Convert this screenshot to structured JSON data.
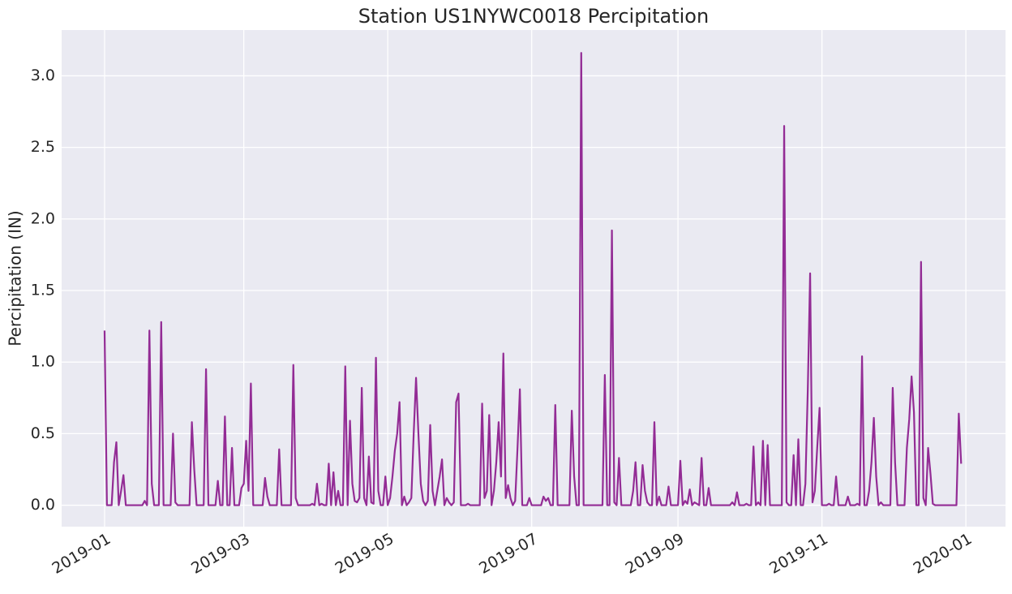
{
  "chart_data": {
    "type": "line",
    "title": "Station US1NYWC0018 Percipitation",
    "y_label": "Percipitation (IN)",
    "color": "#932c95",
    "grid": true,
    "xlim": [
      -18.2,
      381.8
    ],
    "ylim": [
      -0.15,
      3.32
    ],
    "xticks": [
      {
        "value": 0,
        "label": "2019-01"
      },
      {
        "value": 59,
        "label": "2019-03"
      },
      {
        "value": 120,
        "label": "2019-05"
      },
      {
        "value": 181,
        "label": "2019-07"
      },
      {
        "value": 243,
        "label": "2019-09"
      },
      {
        "value": 304,
        "label": "2019-11"
      },
      {
        "value": 365,
        "label": "2020-01"
      }
    ],
    "yticks": [
      {
        "value": 0,
        "label": "0.0"
      },
      0.5,
      {
        "value": 1,
        "label": "1.0"
      },
      1.5,
      {
        "value": 2,
        "label": "2.0"
      },
      2.5,
      {
        "value": 3,
        "label": "3.0"
      }
    ],
    "x": [
      0,
      1,
      3,
      4,
      5,
      6,
      7,
      8,
      9,
      16,
      17,
      18,
      19,
      20,
      21,
      23,
      24,
      25,
      28,
      29,
      30,
      31,
      36,
      37,
      38,
      39,
      42,
      43,
      44,
      47,
      48,
      49,
      50,
      51,
      52,
      53,
      54,
      55,
      57,
      58,
      59,
      60,
      61,
      62,
      63,
      67,
      68,
      69,
      70,
      73,
      74,
      75,
      79,
      80,
      81,
      82,
      87,
      88,
      89,
      90,
      91,
      92,
      93,
      94,
      95,
      96,
      97,
      98,
      99,
      100,
      101,
      102,
      103,
      104,
      105,
      106,
      107,
      108,
      109,
      110,
      111,
      112,
      113,
      114,
      115,
      116,
      117,
      118,
      119,
      120,
      121,
      122,
      123,
      124,
      125,
      126,
      127,
      128,
      129,
      130,
      131,
      132,
      133,
      134,
      135,
      136,
      137,
      138,
      139,
      140,
      141,
      142,
      143,
      144,
      145,
      146,
      147,
      148,
      149,
      150,
      151,
      153,
      154,
      155,
      159,
      160,
      161,
      162,
      163,
      164,
      165,
      166,
      167,
      168,
      169,
      170,
      171,
      172,
      173,
      174,
      175,
      176,
      177,
      179,
      180,
      181,
      185,
      186,
      187,
      188,
      189,
      190,
      191,
      192,
      197,
      198,
      199,
      200,
      201,
      202,
      203,
      211,
      212,
      213,
      214,
      215,
      216,
      217,
      218,
      219,
      223,
      224,
      225,
      226,
      227,
      228,
      229,
      230,
      231,
      232,
      233,
      234,
      235,
      236,
      238,
      239,
      240,
      243,
      244,
      245,
      246,
      247,
      248,
      249,
      250,
      251,
      252,
      253,
      254,
      255,
      256,
      257,
      265,
      266,
      267,
      268,
      269,
      271,
      272,
      273,
      274,
      275,
      276,
      277,
      278,
      279,
      280,
      281,
      282,
      287,
      288,
      289,
      290,
      291,
      292,
      293,
      294,
      295,
      296,
      297,
      298,
      299,
      300,
      301,
      302,
      303,
      304,
      306,
      307,
      308,
      309,
      310,
      311,
      314,
      315,
      316,
      318,
      319,
      320,
      321,
      322,
      323,
      324,
      325,
      326,
      327,
      328,
      329,
      330,
      333,
      334,
      335,
      336,
      339,
      340,
      341,
      342,
      343,
      344,
      345,
      346,
      347,
      348,
      349,
      350,
      351,
      352,
      361,
      362,
      363
    ],
    "values": [
      1.22,
      0,
      0,
      0.3,
      0.44,
      0,
      0.1,
      0.21,
      0,
      0,
      0.03,
      0,
      1.22,
      0.15,
      0,
      0,
      1.28,
      0,
      0,
      0.5,
      0.02,
      0,
      0,
      0.58,
      0.25,
      0,
      0,
      0.95,
      0,
      0,
      0.17,
      0,
      0,
      0.62,
      0,
      0,
      0.4,
      0,
      0,
      0.12,
      0.15,
      0.45,
      0.1,
      0.85,
      0,
      0,
      0.19,
      0.06,
      0,
      0,
      0.39,
      0,
      0,
      0.98,
      0.05,
      0,
      0,
      0.01,
      0,
      0.15,
      0,
      0.01,
      0,
      0,
      0.29,
      0,
      0.23,
      0,
      0.1,
      0,
      0,
      0.97,
      0,
      0.59,
      0.15,
      0.03,
      0.02,
      0.05,
      0.82,
      0.05,
      0,
      0.34,
      0.02,
      0.01,
      1.03,
      0.1,
      0,
      0,
      0.2,
      0,
      0.05,
      0.2,
      0.38,
      0.5,
      0.72,
      0,
      0.06,
      0,
      0.02,
      0.05,
      0.5,
      0.89,
      0.5,
      0.15,
      0.03,
      0,
      0.03,
      0.56,
      0.1,
      0,
      0.1,
      0.2,
      0.32,
      0,
      0.05,
      0.02,
      0,
      0.02,
      0.72,
      0.78,
      0,
      0,
      0.01,
      0,
      0,
      0.71,
      0.05,
      0.1,
      0.63,
      0,
      0.1,
      0.3,
      0.58,
      0.2,
      1.06,
      0.05,
      0.14,
      0.05,
      0,
      0.03,
      0.4,
      0.81,
      0,
      0,
      0.05,
      0,
      0,
      0.06,
      0.03,
      0.05,
      0,
      0,
      0.7,
      0,
      0,
      0.66,
      0.2,
      0,
      0,
      3.16,
      0,
      0,
      0.91,
      0,
      0,
      1.92,
      0.02,
      0,
      0.33,
      0,
      0,
      0.1,
      0.3,
      0,
      0,
      0.28,
      0.1,
      0.02,
      0,
      0,
      0.58,
      0,
      0.06,
      0,
      0,
      0.13,
      0,
      0,
      0.31,
      0,
      0.03,
      0.01,
      0.11,
      0,
      0.02,
      0.01,
      0,
      0.33,
      0,
      0,
      0.12,
      0,
      0,
      0.02,
      0,
      0.09,
      0,
      0,
      0.01,
      0,
      0,
      0.41,
      0,
      0.02,
      0,
      0.45,
      0,
      0.42,
      0,
      0,
      2.65,
      0.02,
      0,
      0,
      0.35,
      0,
      0.46,
      0,
      0,
      0.15,
      0.8,
      1.62,
      0.02,
      0.1,
      0.4,
      0.68,
      0,
      0,
      0.01,
      0,
      0,
      0.2,
      0,
      0,
      0.06,
      0,
      0,
      0.01,
      0,
      1.04,
      0,
      0,
      0.1,
      0.3,
      0.61,
      0.2,
      0,
      0.02,
      0,
      0,
      0.82,
      0.3,
      0,
      0,
      0.4,
      0.6,
      0.9,
      0.65,
      0,
      0,
      1.7,
      0.05,
      0,
      0.4,
      0.22,
      0.01,
      0,
      0,
      0.64,
      0.29
    ]
  }
}
